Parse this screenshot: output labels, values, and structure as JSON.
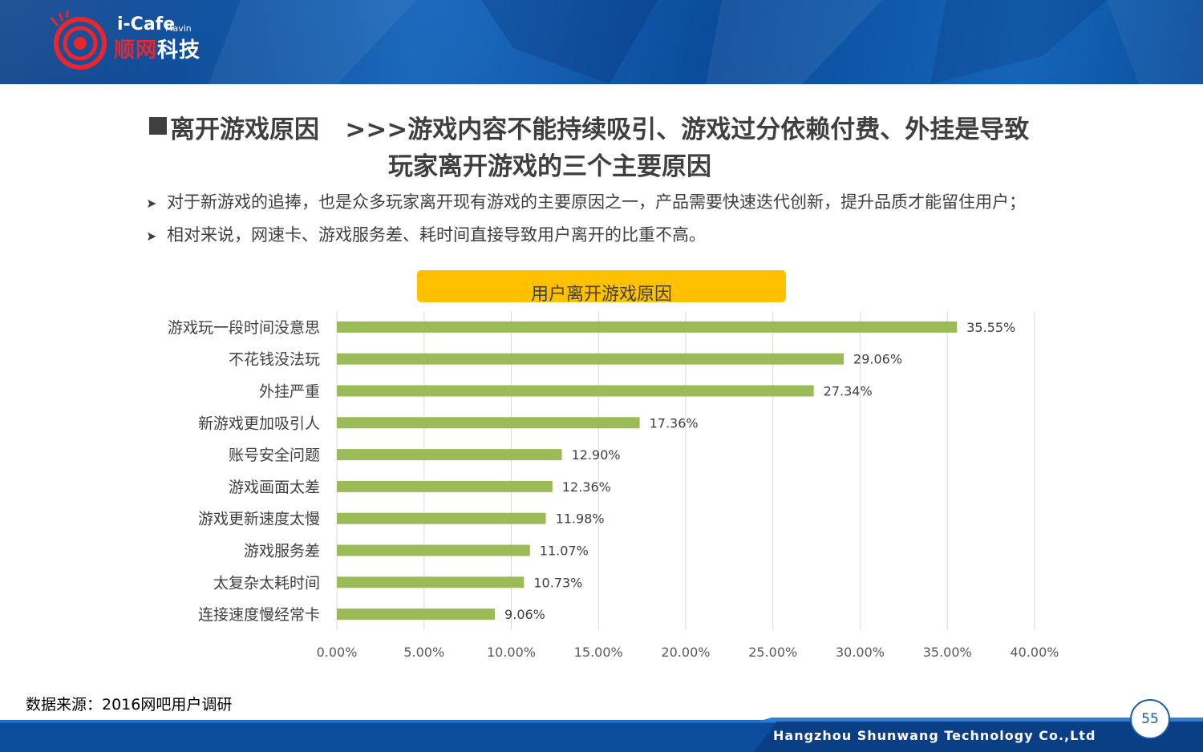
{
  "header": {
    "logo_brand": "i-Cafe",
    "logo_sub": "Mavin",
    "logo_cn_red": "顺网",
    "logo_cn_white": "科技"
  },
  "title": {
    "line1": "离开游戏原因   >>>游戏内容不能持续吸引、游戏过分依赖付费、外挂是导致",
    "line2": "玩家离开游戏的三个主要原因"
  },
  "points": [
    "对于新游戏的追捧，也是众多玩家离开现有游戏的主要原因之一，产品需要快速迭代创新，提升品质才能留住用户；",
    "相对来说，网速卡、游戏服务差、耗时间直接导致用户离开的比重不高。"
  ],
  "chart_data": {
    "type": "bar",
    "orientation": "horizontal",
    "title": "用户离开游戏原因",
    "categories": [
      "游戏玩一段时间没意思",
      "不花钱没法玩",
      "外挂严重",
      "新游戏更加吸引人",
      "账号安全问题",
      "游戏画面太差",
      "游戏更新速度太慢",
      "游戏服务差",
      "太复杂太耗时间",
      "连接速度慢经常卡"
    ],
    "values": [
      35.55,
      29.06,
      27.34,
      17.36,
      12.9,
      12.36,
      11.98,
      11.07,
      10.73,
      9.06
    ],
    "value_labels": [
      "35.55%",
      "29.06%",
      "27.34%",
      "17.36%",
      "12.90%",
      "12.36%",
      "11.98%",
      "11.07%",
      "10.73%",
      "9.06%"
    ],
    "xlim": [
      0,
      40
    ],
    "x_ticks": [
      0,
      5,
      10,
      15,
      20,
      25,
      30,
      35,
      40
    ],
    "x_tick_labels": [
      "0.00%",
      "5.00%",
      "10.00%",
      "15.00%",
      "20.00%",
      "25.00%",
      "30.00%",
      "35.00%",
      "40.00%"
    ],
    "grid": true,
    "bar_color": "#9bbb59"
  },
  "source": "数据来源：2016网吧用户调研",
  "footer": {
    "company": "Hangzhou Shunwang Technology Co.,Ltd",
    "page_number": "55"
  }
}
